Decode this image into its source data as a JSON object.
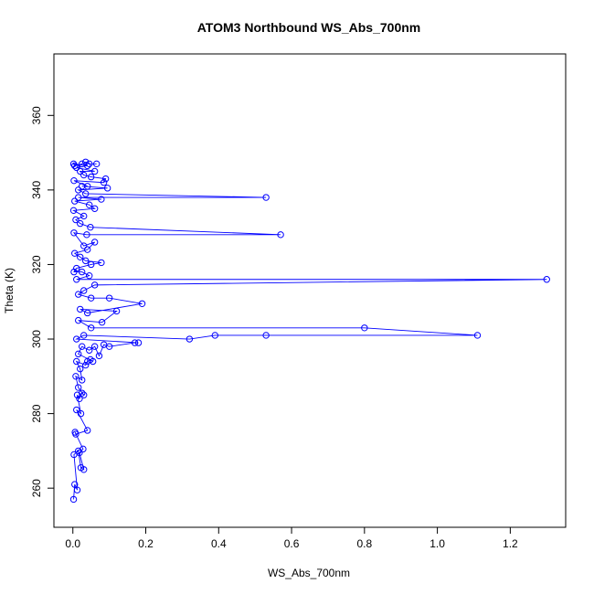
{
  "chart_data": {
    "type": "scatter",
    "title": "ATOM3 Northbound WS_Abs_700nm",
    "xlabel": "WS_Abs_700nm",
    "ylabel": "Theta (K)",
    "xlim": [
      -0.052,
      1.352
    ],
    "ylim": [
      249.5,
      376.5
    ],
    "xticks": [
      "0.0",
      "0.2",
      "0.4",
      "0.6",
      "0.8",
      "1.0",
      "1.2"
    ],
    "xtick_values": [
      0.0,
      0.2,
      0.4,
      0.6,
      0.8,
      1.0,
      1.2
    ],
    "yticks": [
      "260",
      "280",
      "300",
      "320",
      "340",
      "360"
    ],
    "ytick_values": [
      260,
      280,
      300,
      320,
      340,
      360
    ],
    "grid": false,
    "series": [
      {
        "color": "#0000ff",
        "marker": "open-circle",
        "connected": true,
        "points": [
          [
            0.002,
            257
          ],
          [
            0.005,
            261
          ],
          [
            0.012,
            259.5
          ],
          [
            0.003,
            269
          ],
          [
            0.015,
            270
          ],
          [
            0.022,
            265.5
          ],
          [
            0.03,
            265
          ],
          [
            0.018,
            269.5
          ],
          [
            0.028,
            270.5
          ],
          [
            0.006,
            275
          ],
          [
            0.008,
            274.5
          ],
          [
            0.04,
            275.5
          ],
          [
            0.01,
            281
          ],
          [
            0.022,
            280
          ],
          [
            0.012,
            285
          ],
          [
            0.018,
            284
          ],
          [
            0.025,
            285.5
          ],
          [
            0.03,
            285
          ],
          [
            0.015,
            287
          ],
          [
            0.008,
            290
          ],
          [
            0.025,
            289
          ],
          [
            0.02,
            292
          ],
          [
            0.01,
            294
          ],
          [
            0.035,
            293
          ],
          [
            0.04,
            294
          ],
          [
            0.048,
            294.5
          ],
          [
            0.055,
            294
          ],
          [
            0.015,
            296
          ],
          [
            0.025,
            298
          ],
          [
            0.045,
            297
          ],
          [
            0.06,
            298
          ],
          [
            0.072,
            295.5
          ],
          [
            0.085,
            298.5
          ],
          [
            0.1,
            298
          ],
          [
            0.17,
            299
          ],
          [
            0.18,
            299
          ],
          [
            0.01,
            300
          ],
          [
            0.03,
            301
          ],
          [
            0.32,
            300
          ],
          [
            0.39,
            301
          ],
          [
            0.53,
            301
          ],
          [
            1.11,
            301
          ],
          [
            0.8,
            303
          ],
          [
            0.05,
            303
          ],
          [
            0.015,
            305
          ],
          [
            0.08,
            304.5
          ],
          [
            0.12,
            307.5
          ],
          [
            0.02,
            308
          ],
          [
            0.04,
            307
          ],
          [
            0.19,
            309.5
          ],
          [
            0.1,
            311
          ],
          [
            0.05,
            311
          ],
          [
            0.015,
            312
          ],
          [
            0.03,
            313
          ],
          [
            0.06,
            314.5
          ],
          [
            1.3,
            316
          ],
          [
            0.01,
            316
          ],
          [
            0.045,
            317
          ],
          [
            0.025,
            318
          ],
          [
            0.003,
            318
          ],
          [
            0.01,
            319
          ],
          [
            0.05,
            320
          ],
          [
            0.078,
            320.5
          ],
          [
            0.035,
            321
          ],
          [
            0.02,
            322
          ],
          [
            0.005,
            323
          ],
          [
            0.04,
            324
          ],
          [
            0.06,
            326
          ],
          [
            0.03,
            325
          ],
          [
            0.003,
            328.5
          ],
          [
            0.038,
            328
          ],
          [
            0.57,
            328
          ],
          [
            0.048,
            330
          ],
          [
            0.02,
            331
          ],
          [
            0.008,
            332
          ],
          [
            0.03,
            333
          ],
          [
            0.002,
            334.5
          ],
          [
            0.06,
            335
          ],
          [
            0.045,
            336
          ],
          [
            0.005,
            337
          ],
          [
            0.078,
            337.5
          ],
          [
            0.015,
            338
          ],
          [
            0.53,
            338
          ],
          [
            0.035,
            339
          ],
          [
            0.015,
            340
          ],
          [
            0.095,
            340.5
          ],
          [
            0.025,
            341
          ],
          [
            0.04,
            341
          ],
          [
            0.003,
            342.5
          ],
          [
            0.085,
            342
          ],
          [
            0.09,
            343
          ],
          [
            0.05,
            343.5
          ],
          [
            0.03,
            344
          ],
          [
            0.02,
            345
          ],
          [
            0.06,
            345
          ],
          [
            0.01,
            346
          ],
          [
            0.04,
            346.5
          ],
          [
            0.002,
            347
          ],
          [
            0.005,
            346.5
          ],
          [
            0.025,
            347
          ],
          [
            0.035,
            347.5
          ],
          [
            0.045,
            347
          ],
          [
            0.065,
            347
          ]
        ]
      }
    ]
  }
}
